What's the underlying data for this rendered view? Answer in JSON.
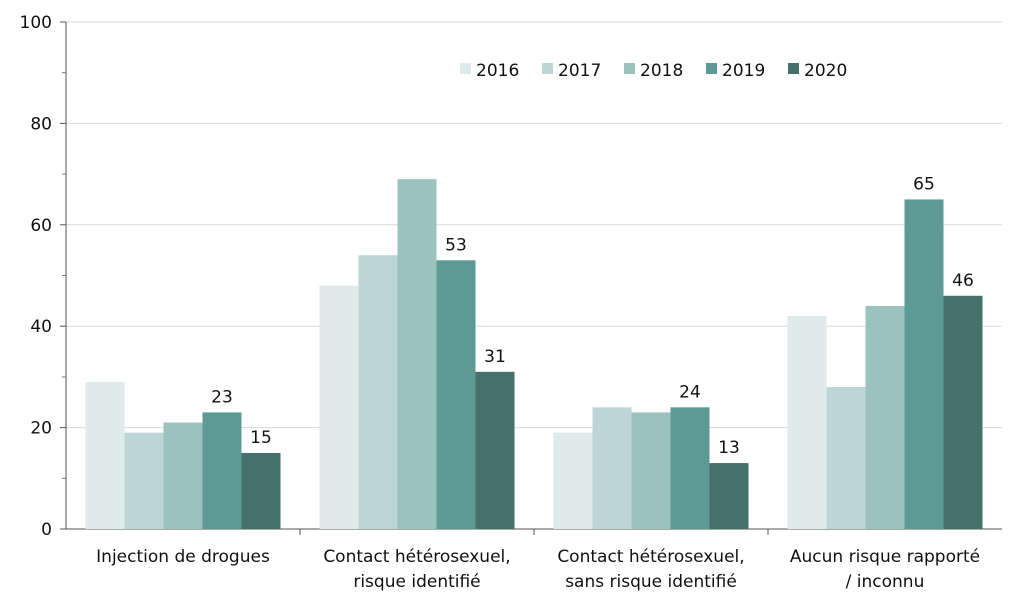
{
  "chart_data": {
    "type": "bar",
    "title": "",
    "xlabel": "",
    "ylabel": "",
    "ylim": [
      0,
      100
    ],
    "yticks": [
      0,
      20,
      40,
      60,
      80,
      100
    ],
    "grid": true,
    "legend_position": "top-right",
    "categories": [
      [
        "Injection de drogues"
      ],
      [
        "Contact hétérosexuel,",
        "risque identifié"
      ],
      [
        "Contact hétérosexuel,",
        "sans risque identifié"
      ],
      [
        "Aucun risque rapporté",
        "/ inconnu"
      ]
    ],
    "series": [
      {
        "name": "2016",
        "color": "#dfeaea",
        "values": [
          29,
          48,
          19,
          42
        ],
        "labels": [
          null,
          null,
          null,
          null
        ]
      },
      {
        "name": "2017",
        "color": "#bdd6d4",
        "values": [
          19,
          54,
          24,
          28
        ],
        "labels": [
          null,
          null,
          null,
          null
        ]
      },
      {
        "name": "2018",
        "color": "#9cc2bf",
        "values": [
          21,
          69,
          23,
          44
        ],
        "labels": [
          null,
          null,
          null,
          null
        ]
      },
      {
        "name": "2019",
        "color": "#5e9a94",
        "values": [
          23,
          53,
          24,
          65
        ],
        "labels": [
          "23",
          "53",
          "24",
          "65"
        ]
      },
      {
        "name": "2020",
        "color": "#46706b",
        "values": [
          15,
          31,
          13,
          46
        ],
        "labels": [
          "15",
          "31",
          "13",
          "46"
        ]
      }
    ]
  }
}
